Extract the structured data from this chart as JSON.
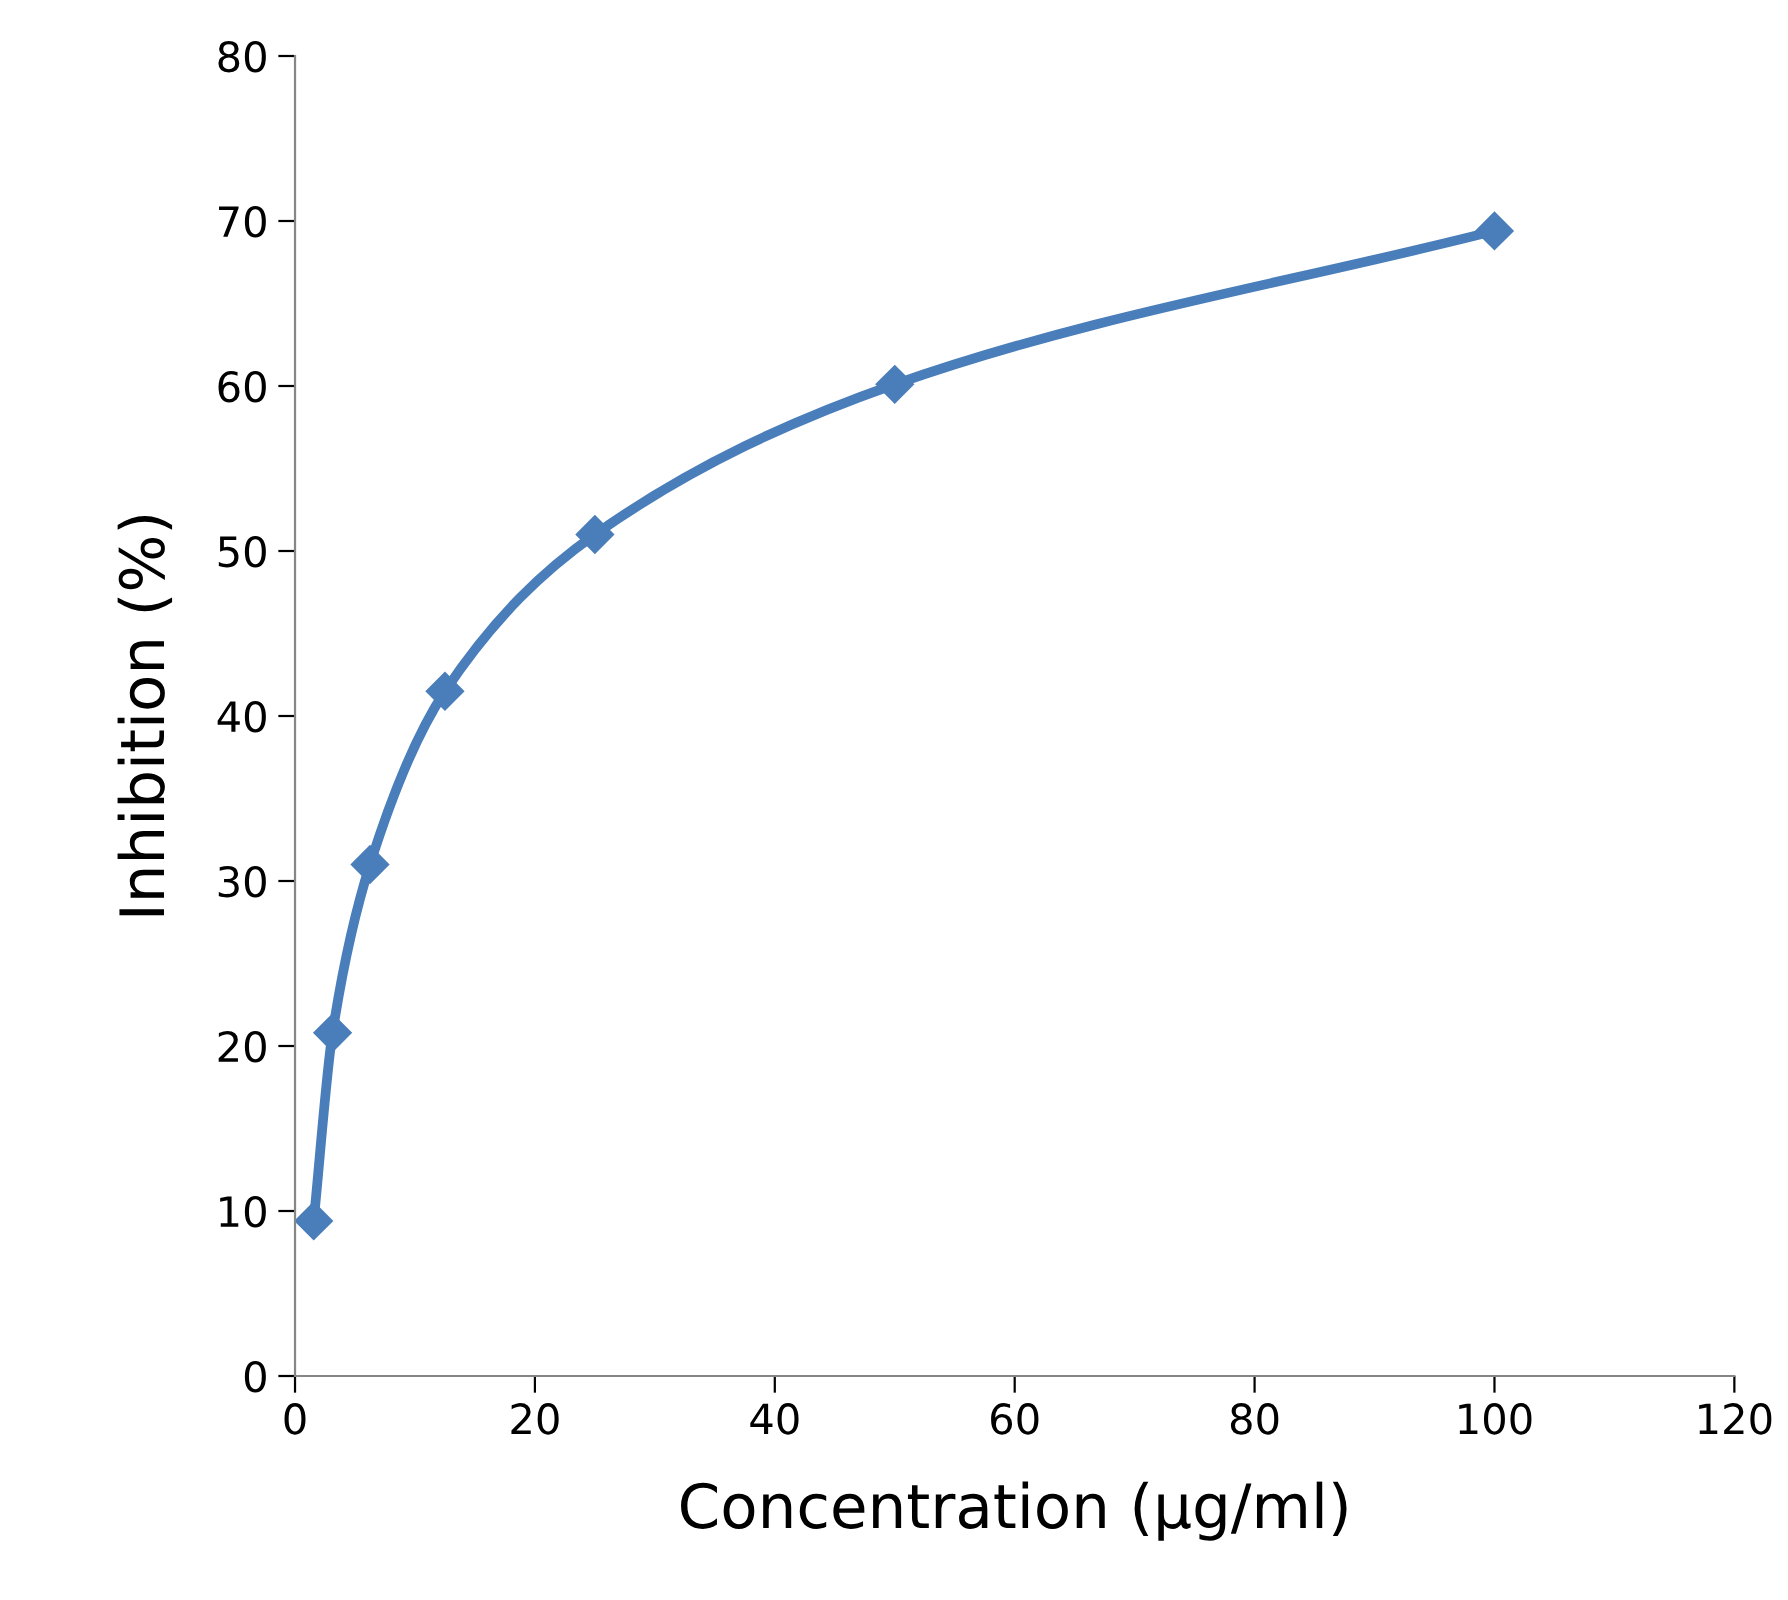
{
  "chart_data": {
    "type": "line",
    "xlabel": "Concentration (µg/ml)",
    "ylabel": "Inhibition (%)",
    "x": [
      1.56,
      3.13,
      6.25,
      12.5,
      25,
      50,
      100
    ],
    "series": [
      {
        "color": "#4a7ebb",
        "values": [
          9.4,
          20.8,
          31.0,
          41.5,
          51.0,
          60.1,
          69.4
        ]
      }
    ],
    "xlim": [
      0,
      120
    ],
    "xticks": [
      0,
      20,
      40,
      60,
      80,
      100,
      120
    ],
    "ylim": [
      0,
      80
    ],
    "yticks": [
      0,
      10,
      20,
      30,
      40,
      50,
      60,
      70,
      80
    ],
    "grid": false,
    "legend": false,
    "marker": "diamond",
    "line_style": "solid"
  }
}
